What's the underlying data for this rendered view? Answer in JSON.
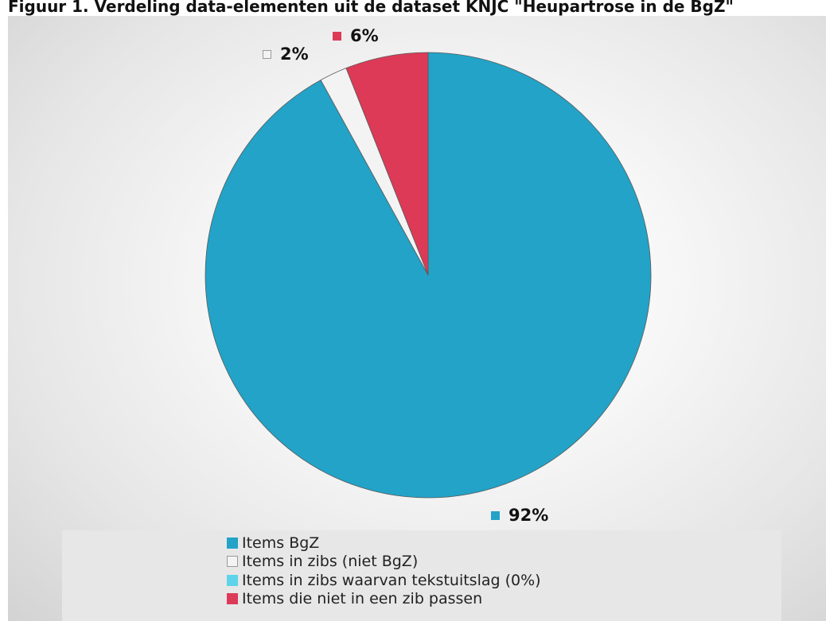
{
  "chart_data": {
    "type": "pie",
    "title": "Figuur 1. Verdeling data-elementen uit de dataset KNJC \"Heupartrose in de BgZ\"",
    "series": [
      {
        "name": "Items BgZ",
        "value": 92,
        "label": "92%",
        "color": "#22a3c7"
      },
      {
        "name": "Items in zibs (niet BgZ)",
        "value": 2,
        "label": "2%",
        "color": "#f3f3f3"
      },
      {
        "name": "Items in zibs waarvan tekstuitslag (0%)",
        "value": 0,
        "label": "",
        "color": "#5ed3ea"
      },
      {
        "name": "Items die niet in een zib passen",
        "value": 6,
        "label": "6%",
        "color": "#dd3a57"
      }
    ],
    "legend_position": "bottom"
  }
}
